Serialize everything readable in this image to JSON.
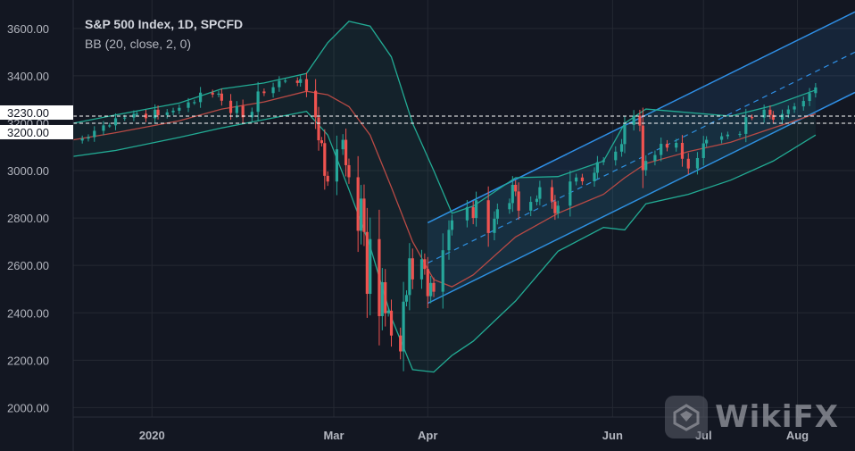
{
  "legend": {
    "title": "S&P 500 Index, 1D, SPCFD",
    "indicator": "BB (20, close, 2, 0)"
  },
  "watermark": {
    "text": "WikiFX",
    "logo_icon": "wikifx-logo-icon"
  },
  "colors": {
    "background": "#131722",
    "grid": "#242832",
    "up": "#26a69a",
    "down": "#ef5350",
    "bb_band": "#22ab94",
    "bb_basis": "#b84a45",
    "channel": "#2f8fe6",
    "levels": "#ffffff"
  },
  "chart_data": {
    "type": "candlestick",
    "symbol": "S&P 500 Index",
    "timeframe": "1D",
    "source": "SPCFD",
    "ylim": [
      1960,
      3720
    ],
    "y_ticks": [
      "2000.00",
      "2200.00",
      "2400.00",
      "2600.00",
      "2800.00",
      "3000.00",
      "3200.00",
      "3400.00",
      "3600.00"
    ],
    "x_ticks": [
      {
        "label": "2020",
        "date": "2020-01-01"
      },
      {
        "label": "Mar",
        "date": "2020-03-01"
      },
      {
        "label": "Apr",
        "date": "2020-04-01"
      },
      {
        "label": "Jun",
        "date": "2020-06-01"
      },
      {
        "label": "Jul",
        "date": "2020-07-01"
      },
      {
        "label": "Aug",
        "date": "2020-08-01"
      }
    ],
    "x_range": [
      "2019-12-06",
      "2020-08-20"
    ],
    "horizontal_levels": [
      {
        "label": "3230.00",
        "value": 3230
      },
      {
        "label": "3200.00",
        "value": 3200
      }
    ],
    "closes": [
      [
        "2019-12-09",
        3135
      ],
      [
        "2019-12-11",
        3141
      ],
      [
        "2019-12-13",
        3168
      ],
      [
        "2019-12-16",
        3191
      ],
      [
        "2019-12-18",
        3191
      ],
      [
        "2019-12-20",
        3221
      ],
      [
        "2019-12-23",
        3224
      ],
      [
        "2019-12-26",
        3239
      ],
      [
        "2019-12-27",
        3240
      ],
      [
        "2019-12-30",
        3221
      ],
      [
        "2020-01-02",
        3257
      ],
      [
        "2020-01-03",
        3234
      ],
      [
        "2020-01-06",
        3246
      ],
      [
        "2020-01-08",
        3253
      ],
      [
        "2020-01-10",
        3265
      ],
      [
        "2020-01-13",
        3288
      ],
      [
        "2020-01-15",
        3289
      ],
      [
        "2020-01-17",
        3329
      ],
      [
        "2020-01-21",
        3321
      ],
      [
        "2020-01-23",
        3325
      ],
      [
        "2020-01-24",
        3295
      ],
      [
        "2020-01-27",
        3243
      ],
      [
        "2020-01-29",
        3273
      ],
      [
        "2020-01-31",
        3225
      ],
      [
        "2020-02-03",
        3248
      ],
      [
        "2020-02-05",
        3334
      ],
      [
        "2020-02-07",
        3327
      ],
      [
        "2020-02-10",
        3352
      ],
      [
        "2020-02-12",
        3379
      ],
      [
        "2020-02-14",
        3380
      ],
      [
        "2020-02-18",
        3370
      ],
      [
        "2020-02-19",
        3386
      ],
      [
        "2020-02-21",
        3337
      ],
      [
        "2020-02-24",
        3225
      ],
      [
        "2020-02-25",
        3128
      ],
      [
        "2020-02-26",
        3116
      ],
      [
        "2020-02-27",
        2978
      ],
      [
        "2020-02-28",
        2954
      ],
      [
        "2020-03-02",
        3090
      ],
      [
        "2020-03-04",
        3130
      ],
      [
        "2020-03-05",
        3023
      ],
      [
        "2020-03-06",
        2972
      ],
      [
        "2020-03-09",
        2746
      ],
      [
        "2020-03-10",
        2882
      ],
      [
        "2020-03-11",
        2741
      ],
      [
        "2020-03-12",
        2480
      ],
      [
        "2020-03-13",
        2711
      ],
      [
        "2020-03-16",
        2386
      ],
      [
        "2020-03-17",
        2529
      ],
      [
        "2020-03-18",
        2398
      ],
      [
        "2020-03-19",
        2409
      ],
      [
        "2020-03-20",
        2304
      ],
      [
        "2020-03-23",
        2237
      ],
      [
        "2020-03-24",
        2447
      ],
      [
        "2020-03-25",
        2475
      ],
      [
        "2020-03-26",
        2630
      ],
      [
        "2020-03-27",
        2541
      ],
      [
        "2020-03-30",
        2626
      ],
      [
        "2020-03-31",
        2585
      ],
      [
        "2020-04-01",
        2470
      ],
      [
        "2020-04-02",
        2526
      ],
      [
        "2020-04-03",
        2489
      ],
      [
        "2020-04-06",
        2664
      ],
      [
        "2020-04-08",
        2750
      ],
      [
        "2020-04-09",
        2790
      ],
      [
        "2020-04-14",
        2846
      ],
      [
        "2020-04-16",
        2800
      ],
      [
        "2020-04-17",
        2875
      ],
      [
        "2020-04-21",
        2737
      ],
      [
        "2020-04-23",
        2797
      ],
      [
        "2020-04-24",
        2837
      ],
      [
        "2020-04-28",
        2863
      ],
      [
        "2020-04-29",
        2940
      ],
      [
        "2020-04-30",
        2912
      ],
      [
        "2020-05-01",
        2831
      ],
      [
        "2020-05-05",
        2868
      ],
      [
        "2020-05-07",
        2881
      ],
      [
        "2020-05-08",
        2930
      ],
      [
        "2020-05-12",
        2870
      ],
      [
        "2020-05-13",
        2820
      ],
      [
        "2020-05-14",
        2852
      ],
      [
        "2020-05-18",
        2954
      ],
      [
        "2020-05-20",
        2971
      ],
      [
        "2020-05-22",
        2955
      ],
      [
        "2020-05-26",
        2991
      ],
      [
        "2020-05-27",
        3036
      ],
      [
        "2020-05-29",
        3044
      ],
      [
        "2020-06-02",
        3080
      ],
      [
        "2020-06-04",
        3112
      ],
      [
        "2020-06-05",
        3193
      ],
      [
        "2020-06-08",
        3232
      ],
      [
        "2020-06-10",
        3190
      ],
      [
        "2020-06-11",
        3002
      ],
      [
        "2020-06-12",
        3041
      ],
      [
        "2020-06-15",
        3066
      ],
      [
        "2020-06-17",
        3113
      ],
      [
        "2020-06-19",
        3097
      ],
      [
        "2020-06-22",
        3117
      ],
      [
        "2020-06-24",
        3050
      ],
      [
        "2020-06-26",
        3009
      ],
      [
        "2020-06-29",
        3053
      ],
      [
        "2020-07-01",
        3115
      ],
      [
        "2020-07-02",
        3130
      ],
      [
        "2020-07-07",
        3145
      ],
      [
        "2020-07-09",
        3152
      ],
      [
        "2020-07-13",
        3155
      ],
      [
        "2020-07-15",
        3226
      ],
      [
        "2020-07-17",
        3224
      ],
      [
        "2020-07-21",
        3257
      ],
      [
        "2020-07-23",
        3235
      ],
      [
        "2020-07-24",
        3215
      ],
      [
        "2020-07-27",
        3239
      ],
      [
        "2020-07-29",
        3258
      ],
      [
        "2020-07-31",
        3271
      ],
      [
        "2020-08-03",
        3294
      ],
      [
        "2020-08-05",
        3327
      ],
      [
        "2020-08-07",
        3351
      ]
    ],
    "bollinger_bands": {
      "period": 20,
      "source": "close",
      "stdev": 2,
      "offset": 0,
      "upper": [
        [
          "2019-12-06",
          3200
        ],
        [
          "2019-12-20",
          3235
        ],
        [
          "2020-01-10",
          3285
        ],
        [
          "2020-01-24",
          3345
        ],
        [
          "2020-02-07",
          3370
        ],
        [
          "2020-02-21",
          3410
        ],
        [
          "2020-02-28",
          3540
        ],
        [
          "2020-03-06",
          3630
        ],
        [
          "2020-03-13",
          3610
        ],
        [
          "2020-03-20",
          3480
        ],
        [
          "2020-03-27",
          3200
        ],
        [
          "2020-04-03",
          3000
        ],
        [
          "2020-04-09",
          2820
        ],
        [
          "2020-04-16",
          2850
        ],
        [
          "2020-04-30",
          2970
        ],
        [
          "2020-05-14",
          2975
        ],
        [
          "2020-05-29",
          3040
        ],
        [
          "2020-06-05",
          3200
        ],
        [
          "2020-06-12",
          3260
        ],
        [
          "2020-06-26",
          3245
        ],
        [
          "2020-07-10",
          3230
        ],
        [
          "2020-07-24",
          3275
        ],
        [
          "2020-08-07",
          3340
        ]
      ],
      "basis": [
        [
          "2019-12-06",
          3130
        ],
        [
          "2019-12-20",
          3160
        ],
        [
          "2020-01-10",
          3210
        ],
        [
          "2020-01-24",
          3260
        ],
        [
          "2020-02-07",
          3290
        ],
        [
          "2020-02-21",
          3335
        ],
        [
          "2020-02-28",
          3320
        ],
        [
          "2020-03-06",
          3270
        ],
        [
          "2020-03-13",
          3150
        ],
        [
          "2020-03-20",
          2930
        ],
        [
          "2020-03-27",
          2700
        ],
        [
          "2020-04-03",
          2540
        ],
        [
          "2020-04-09",
          2510
        ],
        [
          "2020-04-16",
          2560
        ],
        [
          "2020-04-30",
          2720
        ],
        [
          "2020-05-14",
          2820
        ],
        [
          "2020-05-29",
          2900
        ],
        [
          "2020-06-05",
          2970
        ],
        [
          "2020-06-12",
          3030
        ],
        [
          "2020-06-26",
          3080
        ],
        [
          "2020-07-10",
          3120
        ],
        [
          "2020-07-24",
          3180
        ],
        [
          "2020-08-07",
          3240
        ]
      ],
      "lower": [
        [
          "2019-12-06",
          3060
        ],
        [
          "2019-12-20",
          3085
        ],
        [
          "2020-01-10",
          3140
        ],
        [
          "2020-01-24",
          3180
        ],
        [
          "2020-02-07",
          3215
        ],
        [
          "2020-02-21",
          3250
        ],
        [
          "2020-02-28",
          3150
        ],
        [
          "2020-03-06",
          2920
        ],
        [
          "2020-03-13",
          2680
        ],
        [
          "2020-03-20",
          2380
        ],
        [
          "2020-03-27",
          2160
        ],
        [
          "2020-04-03",
          2150
        ],
        [
          "2020-04-09",
          2220
        ],
        [
          "2020-04-16",
          2280
        ],
        [
          "2020-04-30",
          2450
        ],
        [
          "2020-05-14",
          2660
        ],
        [
          "2020-05-29",
          2760
        ],
        [
          "2020-06-05",
          2750
        ],
        [
          "2020-06-12",
          2860
        ],
        [
          "2020-06-26",
          2900
        ],
        [
          "2020-07-10",
          2960
        ],
        [
          "2020-07-24",
          3040
        ],
        [
          "2020-08-07",
          3150
        ]
      ]
    },
    "regression_channel": {
      "start": "2020-04-01",
      "end": "2020-08-20",
      "upper": [
        2780,
        3670
      ],
      "middle": [
        2610,
        3500
      ],
      "lower": [
        2440,
        3330
      ]
    }
  }
}
